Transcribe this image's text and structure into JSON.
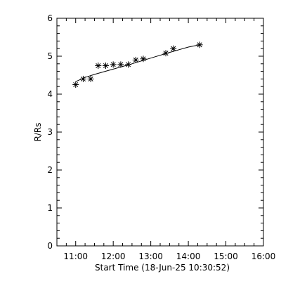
{
  "chart_data": {
    "type": "scatter",
    "xlabel": "Start Time (18-Jun-25 10:30:52)",
    "ylabel": "R/Rs",
    "xlim": [
      "10:30",
      "16:00"
    ],
    "ylim": [
      0,
      6
    ],
    "x_ticks": [
      "11:00",
      "12:00",
      "13:00",
      "14:00",
      "15:00",
      "16:00"
    ],
    "y_ticks": [
      "0",
      "1",
      "2",
      "3",
      "4",
      "5",
      "6"
    ],
    "marker": "asterisk",
    "grid": false,
    "series": [
      {
        "points": [
          {
            "x": "11:00",
            "y": 4.25
          },
          {
            "x": "11:12",
            "y": 4.4
          },
          {
            "x": "11:24",
            "y": 4.4
          },
          {
            "x": "11:36",
            "y": 4.75
          },
          {
            "x": "11:48",
            "y": 4.75
          },
          {
            "x": "12:00",
            "y": 4.78
          },
          {
            "x": "12:12",
            "y": 4.78
          },
          {
            "x": "12:24",
            "y": 4.78
          },
          {
            "x": "12:36",
            "y": 4.9
          },
          {
            "x": "12:48",
            "y": 4.93
          },
          {
            "x": "13:24",
            "y": 5.08
          },
          {
            "x": "13:36",
            "y": 5.2
          },
          {
            "x": "14:18",
            "y": 5.3
          }
        ]
      }
    ],
    "fit_line": [
      {
        "x": "11:00",
        "y": 4.33
      },
      {
        "x": "11:15",
        "y": 4.44
      },
      {
        "x": "11:30",
        "y": 4.52
      },
      {
        "x": "12:00",
        "y": 4.66
      },
      {
        "x": "12:30",
        "y": 4.8
      },
      {
        "x": "13:00",
        "y": 4.95
      },
      {
        "x": "13:30",
        "y": 5.1
      },
      {
        "x": "14:00",
        "y": 5.24
      },
      {
        "x": "14:18",
        "y": 5.3
      }
    ]
  }
}
